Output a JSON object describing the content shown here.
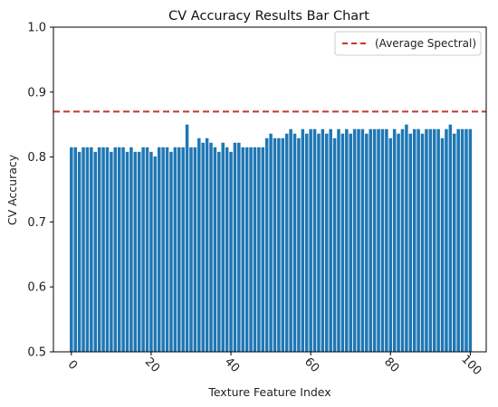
{
  "chart_data": {
    "type": "bar",
    "title": "CV Accuracy Results Bar Chart",
    "xlabel": "Texture Feature Index",
    "ylabel": "CV Accuracy",
    "xlim": [
      -4.5,
      104
    ],
    "ylim": [
      0.5,
      1.0
    ],
    "xticks": [
      0,
      20,
      40,
      60,
      80,
      100
    ],
    "yticks": [
      0.5,
      0.6,
      0.7,
      0.8,
      0.9,
      1.0
    ],
    "ytick_labels": [
      "0.5",
      "0.6",
      "0.7",
      "0.8",
      "0.9",
      "1.0"
    ],
    "grid": false,
    "legend_position": "top-right",
    "bar_color": "#1f77b4",
    "reference_lines": [
      {
        "label": "(Average Spectral)",
        "y": 0.87,
        "style": "dashed",
        "color": "#c0392b"
      }
    ],
    "x": [
      0,
      1,
      2,
      3,
      4,
      5,
      6,
      7,
      8,
      9,
      10,
      11,
      12,
      13,
      14,
      15,
      16,
      17,
      18,
      19,
      20,
      21,
      22,
      23,
      24,
      25,
      26,
      27,
      28,
      29,
      30,
      31,
      32,
      33,
      34,
      35,
      36,
      37,
      38,
      39,
      40,
      41,
      42,
      43,
      44,
      45,
      46,
      47,
      48,
      49,
      50,
      51,
      52,
      53,
      54,
      55,
      56,
      57,
      58,
      59,
      60,
      61,
      62,
      63,
      64,
      65,
      66,
      67,
      68,
      69,
      70,
      71,
      72,
      73,
      74,
      75,
      76,
      77,
      78,
      79,
      80,
      81,
      82,
      83,
      84,
      85,
      86,
      87,
      88,
      89,
      90,
      91,
      92,
      93,
      94,
      95,
      96,
      97,
      98,
      99,
      100
    ],
    "values": [
      0.815,
      0.815,
      0.808,
      0.815,
      0.815,
      0.815,
      0.808,
      0.815,
      0.815,
      0.815,
      0.808,
      0.815,
      0.815,
      0.815,
      0.808,
      0.815,
      0.808,
      0.808,
      0.815,
      0.815,
      0.808,
      0.801,
      0.815,
      0.815,
      0.815,
      0.808,
      0.815,
      0.815,
      0.815,
      0.85,
      0.815,
      0.815,
      0.829,
      0.822,
      0.829,
      0.822,
      0.815,
      0.808,
      0.822,
      0.815,
      0.808,
      0.822,
      0.822,
      0.815,
      0.815,
      0.815,
      0.815,
      0.815,
      0.815,
      0.829,
      0.836,
      0.829,
      0.829,
      0.829,
      0.836,
      0.843,
      0.836,
      0.829,
      0.843,
      0.836,
      0.843,
      0.843,
      0.836,
      0.843,
      0.836,
      0.843,
      0.829,
      0.843,
      0.836,
      0.843,
      0.836,
      0.843,
      0.843,
      0.843,
      0.836,
      0.843,
      0.843,
      0.843,
      0.843,
      0.843,
      0.829,
      0.843,
      0.836,
      0.843,
      0.85,
      0.836,
      0.843,
      0.843,
      0.836,
      0.843,
      0.843,
      0.843,
      0.843,
      0.829,
      0.843,
      0.85,
      0.836,
      0.843,
      0.843,
      0.843,
      0.843
    ]
  }
}
